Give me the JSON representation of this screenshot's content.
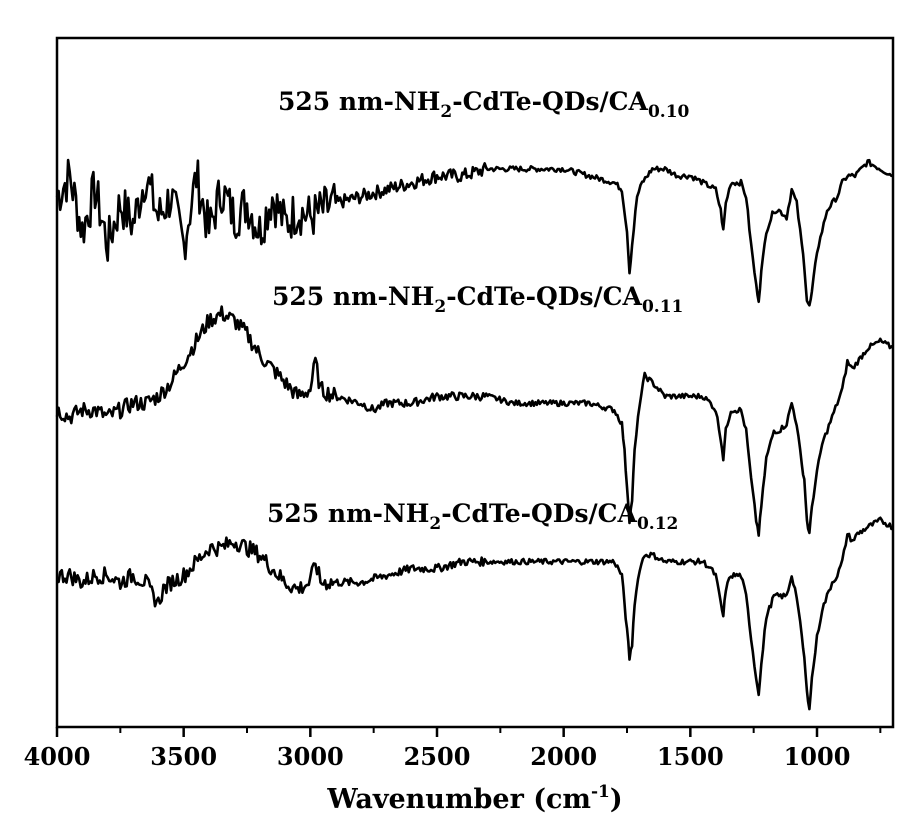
{
  "chart_data": {
    "type": "line",
    "title": "",
    "xlabel": {
      "text": "Wavenumber (cm",
      "sup": "-1",
      "close": ")"
    },
    "ylabel": "",
    "xlim": [
      4000,
      700
    ],
    "x_reversed": true,
    "y_ticks_shown": false,
    "grid": false,
    "legend": "none",
    "x_ticks": [
      {
        "value": 4000,
        "label": "4000"
      },
      {
        "value": 3500,
        "label": "3500"
      },
      {
        "value": 3000,
        "label": "3000"
      },
      {
        "value": 2500,
        "label": "2500"
      },
      {
        "value": 2000,
        "label": "2000"
      },
      {
        "value": 1500,
        "label": "1500"
      },
      {
        "value": 1000,
        "label": "1000"
      }
    ],
    "series": [
      {
        "label": {
          "main": "525 nm-NH",
          "sub1": "2",
          "mid": "-CdTe-QDs/CA",
          "sub2": "0.10"
        },
        "color": "#000000",
        "points": [
          [
            4000,
            0.77
          ],
          [
            3950,
            0.8
          ],
          [
            3900,
            0.72
          ],
          [
            3850,
            0.78
          ],
          [
            3800,
            0.7
          ],
          [
            3750,
            0.76
          ],
          [
            3700,
            0.73
          ],
          [
            3650,
            0.8
          ],
          [
            3600,
            0.74
          ],
          [
            3550,
            0.77
          ],
          [
            3500,
            0.7
          ],
          [
            3450,
            0.8
          ],
          [
            3400,
            0.72
          ],
          [
            3350,
            0.78
          ],
          [
            3300,
            0.74
          ],
          [
            3250,
            0.76
          ],
          [
            3200,
            0.72
          ],
          [
            3150,
            0.77
          ],
          [
            3100,
            0.73
          ],
          [
            3050,
            0.75
          ],
          [
            3000,
            0.74
          ],
          [
            2950,
            0.75
          ],
          [
            2900,
            0.76
          ],
          [
            2800,
            0.77
          ],
          [
            2700,
            0.78
          ],
          [
            2600,
            0.79
          ],
          [
            2500,
            0.8
          ],
          [
            2400,
            0.8
          ],
          [
            2300,
            0.81
          ],
          [
            2200,
            0.81
          ],
          [
            2100,
            0.81
          ],
          [
            2000,
            0.81
          ],
          [
            1900,
            0.8
          ],
          [
            1800,
            0.79
          ],
          [
            1770,
            0.78
          ],
          [
            1750,
            0.72
          ],
          [
            1740,
            0.66
          ],
          [
            1730,
            0.7
          ],
          [
            1710,
            0.77
          ],
          [
            1690,
            0.79
          ],
          [
            1650,
            0.81
          ],
          [
            1600,
            0.81
          ],
          [
            1550,
            0.8
          ],
          [
            1500,
            0.8
          ],
          [
            1450,
            0.79
          ],
          [
            1400,
            0.78
          ],
          [
            1380,
            0.75
          ],
          [
            1370,
            0.72
          ],
          [
            1360,
            0.76
          ],
          [
            1340,
            0.79
          ],
          [
            1300,
            0.79
          ],
          [
            1280,
            0.77
          ],
          [
            1260,
            0.7
          ],
          [
            1240,
            0.64
          ],
          [
            1230,
            0.62
          ],
          [
            1220,
            0.66
          ],
          [
            1200,
            0.72
          ],
          [
            1170,
            0.75
          ],
          [
            1150,
            0.75
          ],
          [
            1120,
            0.74
          ],
          [
            1100,
            0.78
          ],
          [
            1080,
            0.76
          ],
          [
            1060,
            0.7
          ],
          [
            1050,
            0.67
          ],
          [
            1040,
            0.62
          ],
          [
            1030,
            0.61
          ],
          [
            1020,
            0.63
          ],
          [
            1000,
            0.69
          ],
          [
            980,
            0.72
          ],
          [
            960,
            0.75
          ],
          [
            940,
            0.76
          ],
          [
            920,
            0.77
          ],
          [
            900,
            0.79
          ],
          [
            880,
            0.8
          ],
          [
            850,
            0.8
          ],
          [
            800,
            0.82
          ],
          [
            750,
            0.81
          ],
          [
            700,
            0.8
          ]
        ]
      },
      {
        "label": {
          "main": "525 nm-NH",
          "sub1": "2",
          "mid": "-CdTe-QDs/CA",
          "sub2": "0.11"
        },
        "color": "#000000",
        "points": [
          [
            4000,
            0.46
          ],
          [
            3950,
            0.45
          ],
          [
            3900,
            0.46
          ],
          [
            3850,
            0.46
          ],
          [
            3800,
            0.45
          ],
          [
            3750,
            0.46
          ],
          [
            3700,
            0.47
          ],
          [
            3650,
            0.47
          ],
          [
            3600,
            0.48
          ],
          [
            3550,
            0.5
          ],
          [
            3500,
            0.53
          ],
          [
            3450,
            0.56
          ],
          [
            3400,
            0.59
          ],
          [
            3350,
            0.6
          ],
          [
            3300,
            0.59
          ],
          [
            3250,
            0.57
          ],
          [
            3200,
            0.54
          ],
          [
            3150,
            0.52
          ],
          [
            3100,
            0.5
          ],
          [
            3050,
            0.48
          ],
          [
            3000,
            0.49
          ],
          [
            2980,
            0.53
          ],
          [
            2960,
            0.49
          ],
          [
            2900,
            0.48
          ],
          [
            2800,
            0.47
          ],
          [
            2750,
            0.46
          ],
          [
            2700,
            0.47
          ],
          [
            2600,
            0.47
          ],
          [
            2500,
            0.48
          ],
          [
            2400,
            0.48
          ],
          [
            2300,
            0.48
          ],
          [
            2200,
            0.47
          ],
          [
            2100,
            0.47
          ],
          [
            2000,
            0.47
          ],
          [
            1900,
            0.47
          ],
          [
            1800,
            0.46
          ],
          [
            1770,
            0.44
          ],
          [
            1760,
            0.4
          ],
          [
            1750,
            0.35
          ],
          [
            1740,
            0.3
          ],
          [
            1730,
            0.33
          ],
          [
            1720,
            0.4
          ],
          [
            1700,
            0.47
          ],
          [
            1680,
            0.51
          ],
          [
            1650,
            0.5
          ],
          [
            1600,
            0.48
          ],
          [
            1550,
            0.48
          ],
          [
            1500,
            0.48
          ],
          [
            1450,
            0.48
          ],
          [
            1420,
            0.47
          ],
          [
            1400,
            0.46
          ],
          [
            1380,
            0.42
          ],
          [
            1370,
            0.39
          ],
          [
            1360,
            0.43
          ],
          [
            1340,
            0.46
          ],
          [
            1300,
            0.46
          ],
          [
            1280,
            0.43
          ],
          [
            1260,
            0.36
          ],
          [
            1240,
            0.3
          ],
          [
            1230,
            0.28
          ],
          [
            1220,
            0.32
          ],
          [
            1200,
            0.39
          ],
          [
            1170,
            0.43
          ],
          [
            1150,
            0.43
          ],
          [
            1120,
            0.44
          ],
          [
            1100,
            0.47
          ],
          [
            1080,
            0.44
          ],
          [
            1060,
            0.38
          ],
          [
            1050,
            0.36
          ],
          [
            1040,
            0.3
          ],
          [
            1030,
            0.28
          ],
          [
            1020,
            0.32
          ],
          [
            1000,
            0.37
          ],
          [
            980,
            0.41
          ],
          [
            960,
            0.43
          ],
          [
            940,
            0.45
          ],
          [
            920,
            0.47
          ],
          [
            900,
            0.49
          ],
          [
            880,
            0.53
          ],
          [
            860,
            0.52
          ],
          [
            840,
            0.53
          ],
          [
            800,
            0.55
          ],
          [
            750,
            0.56
          ],
          [
            700,
            0.55
          ]
        ]
      },
      {
        "label": {
          "main": "525 nm-NH",
          "sub1": "2",
          "mid": "-CdTe-QDs/CA",
          "sub2": "0.12"
        },
        "color": "#000000",
        "points": [
          [
            4000,
            0.22
          ],
          [
            3950,
            0.22
          ],
          [
            3900,
            0.21
          ],
          [
            3850,
            0.22
          ],
          [
            3800,
            0.22
          ],
          [
            3750,
            0.21
          ],
          [
            3700,
            0.22
          ],
          [
            3650,
            0.21
          ],
          [
            3620,
            0.19
          ],
          [
            3600,
            0.18
          ],
          [
            3580,
            0.2
          ],
          [
            3550,
            0.21
          ],
          [
            3500,
            0.22
          ],
          [
            3450,
            0.24
          ],
          [
            3400,
            0.26
          ],
          [
            3350,
            0.26
          ],
          [
            3300,
            0.27
          ],
          [
            3250,
            0.26
          ],
          [
            3200,
            0.25
          ],
          [
            3150,
            0.23
          ],
          [
            3100,
            0.21
          ],
          [
            3050,
            0.2
          ],
          [
            3000,
            0.21
          ],
          [
            2980,
            0.24
          ],
          [
            2960,
            0.21
          ],
          [
            2900,
            0.21
          ],
          [
            2800,
            0.21
          ],
          [
            2700,
            0.22
          ],
          [
            2600,
            0.23
          ],
          [
            2500,
            0.23
          ],
          [
            2400,
            0.24
          ],
          [
            2300,
            0.24
          ],
          [
            2200,
            0.24
          ],
          [
            2100,
            0.24
          ],
          [
            2000,
            0.24
          ],
          [
            1900,
            0.24
          ],
          [
            1800,
            0.24
          ],
          [
            1770,
            0.22
          ],
          [
            1760,
            0.18
          ],
          [
            1750,
            0.14
          ],
          [
            1740,
            0.1
          ],
          [
            1730,
            0.12
          ],
          [
            1720,
            0.18
          ],
          [
            1700,
            0.23
          ],
          [
            1680,
            0.25
          ],
          [
            1650,
            0.25
          ],
          [
            1600,
            0.24
          ],
          [
            1550,
            0.24
          ],
          [
            1500,
            0.24
          ],
          [
            1450,
            0.24
          ],
          [
            1420,
            0.23
          ],
          [
            1400,
            0.22
          ],
          [
            1380,
            0.18
          ],
          [
            1370,
            0.16
          ],
          [
            1360,
            0.2
          ],
          [
            1340,
            0.22
          ],
          [
            1300,
            0.22
          ],
          [
            1280,
            0.19
          ],
          [
            1260,
            0.13
          ],
          [
            1240,
            0.07
          ],
          [
            1230,
            0.05
          ],
          [
            1220,
            0.09
          ],
          [
            1200,
            0.16
          ],
          [
            1170,
            0.19
          ],
          [
            1150,
            0.19
          ],
          [
            1120,
            0.19
          ],
          [
            1100,
            0.22
          ],
          [
            1080,
            0.19
          ],
          [
            1060,
            0.13
          ],
          [
            1050,
            0.1
          ],
          [
            1040,
            0.05
          ],
          [
            1030,
            0.03
          ],
          [
            1020,
            0.07
          ],
          [
            1000,
            0.13
          ],
          [
            980,
            0.17
          ],
          [
            960,
            0.19
          ],
          [
            940,
            0.21
          ],
          [
            920,
            0.22
          ],
          [
            900,
            0.24
          ],
          [
            880,
            0.28
          ],
          [
            860,
            0.27
          ],
          [
            840,
            0.28
          ],
          [
            800,
            0.29
          ],
          [
            750,
            0.3
          ],
          [
            700,
            0.29
          ]
        ]
      }
    ]
  }
}
